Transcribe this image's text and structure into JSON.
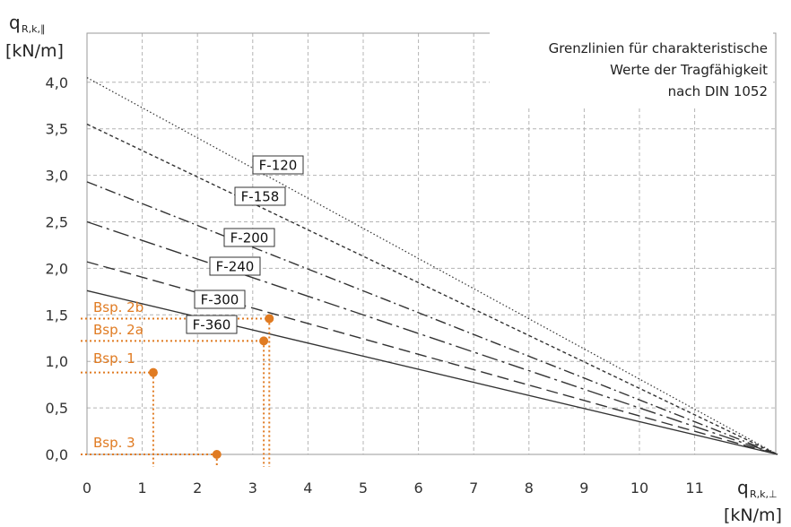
{
  "chart_data": {
    "type": "line",
    "annotation_lines": [
      "Grenzlinien für charakteristische",
      "Werte der  Tragfähigkeit",
      "nach DIN 1052"
    ],
    "y_axis": {
      "symbol": "q",
      "subscript": "R,k,∥",
      "unit": "[kN/m]"
    },
    "x_axis": {
      "symbol": "q",
      "subscript": "R,k,⊥",
      "unit": "[kN/m]"
    },
    "xlim": [
      0,
      12.5
    ],
    "ylim": [
      0,
      4.1
    ],
    "x_ticks": [
      "0",
      "1",
      "2",
      "3",
      "4",
      "5",
      "6",
      "7",
      "8",
      "9",
      "10",
      "11"
    ],
    "y_ticks": [
      "0,0",
      "0,5",
      "1,0",
      "1,5",
      "2,0",
      "2,5",
      "3,0",
      "3,5",
      "4,0"
    ],
    "grid": true,
    "series": [
      {
        "name": "F-120",
        "dash": "dotted",
        "x": [
          0,
          12.5
        ],
        "y": [
          4.05,
          0
        ]
      },
      {
        "name": "F-158",
        "dash": "short-dash",
        "x": [
          0,
          12.5
        ],
        "y": [
          3.55,
          0
        ]
      },
      {
        "name": "F-200",
        "dash": "dash-dot",
        "x": [
          0,
          12.5
        ],
        "y": [
          2.93,
          0
        ]
      },
      {
        "name": "F-240",
        "dash": "long-dash-dot",
        "x": [
          0,
          12.5
        ],
        "y": [
          2.5,
          0
        ]
      },
      {
        "name": "F-300",
        "dash": "dashed",
        "x": [
          0,
          12.5
        ],
        "y": [
          2.07,
          0
        ]
      },
      {
        "name": "F-360",
        "dash": "solid",
        "x": [
          0,
          12.5
        ],
        "y": [
          1.76,
          0
        ]
      }
    ],
    "examples": [
      {
        "label": "Bsp. 2b",
        "x": 3.3,
        "y": 1.46
      },
      {
        "label": "Bsp. 2a",
        "x": 3.2,
        "y": 1.22
      },
      {
        "label": "Bsp. 1",
        "x": 1.2,
        "y": 0.88
      },
      {
        "label": "Bsp. 3",
        "x": 2.35,
        "y": 0.0
      }
    ],
    "colors": {
      "example": "#e07b22",
      "grid": "#b4b4b4",
      "line": "#333333"
    }
  }
}
